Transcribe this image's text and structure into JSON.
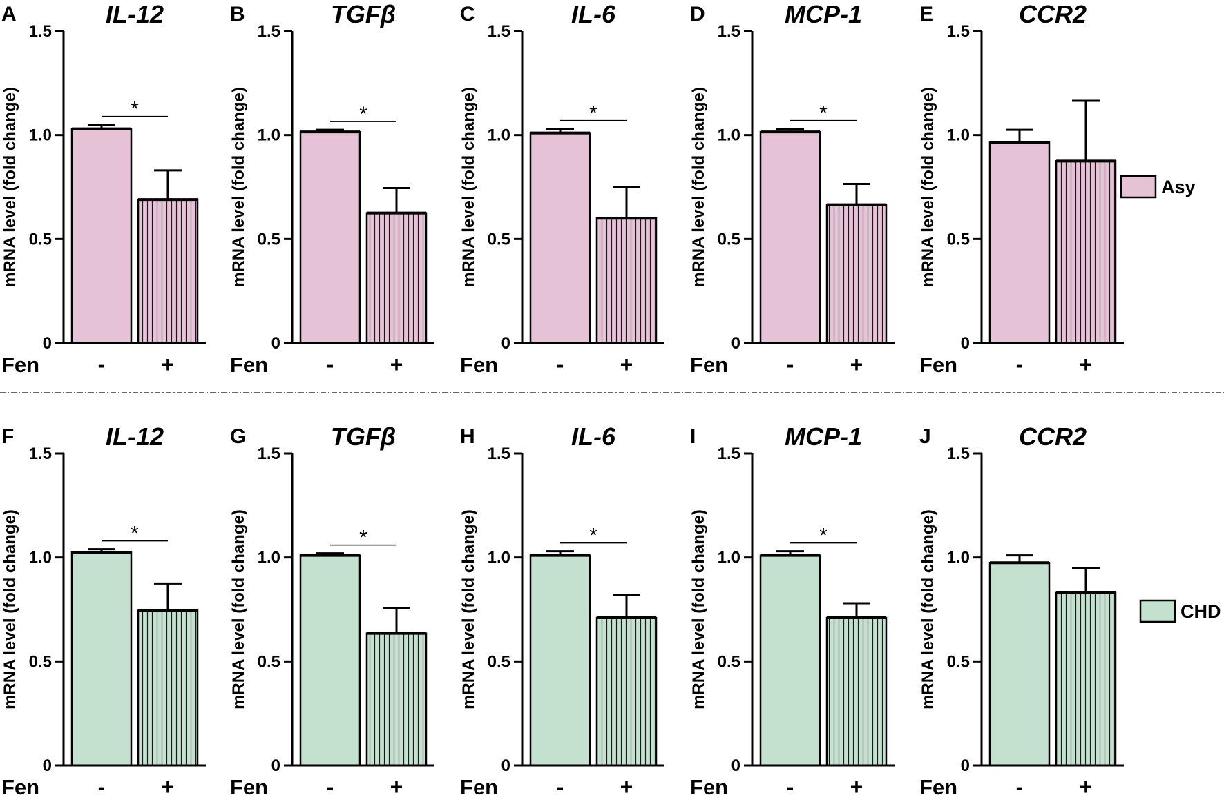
{
  "colors": {
    "asy": "#e6c2d6",
    "chd": "#c4e0ce",
    "axis": "#000000"
  },
  "legend": [
    {
      "label": "Asy",
      "color": "#e6c2d6"
    },
    {
      "label": "CHD",
      "color": "#c4e0ce"
    }
  ],
  "chart_data": [
    {
      "type": "bar",
      "panel": "A",
      "title": "IL-12",
      "group": "Asy",
      "xlabel": "Fen",
      "categories": [
        "-",
        "+"
      ],
      "values": [
        1.03,
        0.69
      ],
      "errors": [
        0.02,
        0.14
      ],
      "ylabel": "mRNA level (fold change)",
      "ylim": [
        0,
        1.5
      ],
      "yticks": [
        "0",
        "0.5",
        "1.0",
        "1.5"
      ],
      "significance": "*"
    },
    {
      "type": "bar",
      "panel": "B",
      "title": "TGFβ",
      "group": "Asy",
      "xlabel": "Fen",
      "categories": [
        "-",
        "+"
      ],
      "values": [
        1.015,
        0.625
      ],
      "errors": [
        0.01,
        0.12
      ],
      "ylabel": "mRNA level (fold change)",
      "ylim": [
        0,
        1.5
      ],
      "yticks": [
        "0",
        "0.5",
        "1.0",
        "1.5"
      ],
      "significance": "*"
    },
    {
      "type": "bar",
      "panel": "C",
      "title": "IL-6",
      "group": "Asy",
      "xlabel": "Fen",
      "categories": [
        "-",
        "+"
      ],
      "values": [
        1.01,
        0.6
      ],
      "errors": [
        0.02,
        0.15
      ],
      "ylabel": "mRNA level (fold change)",
      "ylim": [
        0,
        1.5
      ],
      "yticks": [
        "0",
        "0.5",
        "1.0",
        "1.5"
      ],
      "significance": "*"
    },
    {
      "type": "bar",
      "panel": "D",
      "title": "MCP-1",
      "group": "Asy",
      "xlabel": "Fen",
      "categories": [
        "-",
        "+"
      ],
      "values": [
        1.015,
        0.665
      ],
      "errors": [
        0.015,
        0.1
      ],
      "ylabel": "mRNA level (fold change)",
      "ylim": [
        0,
        1.5
      ],
      "yticks": [
        "0",
        "0.5",
        "1.0",
        "1.5"
      ],
      "significance": "*"
    },
    {
      "type": "bar",
      "panel": "E",
      "title": "CCR2",
      "group": "Asy",
      "xlabel": "Fen",
      "categories": [
        "-",
        "+"
      ],
      "values": [
        0.965,
        0.875
      ],
      "errors": [
        0.06,
        0.29
      ],
      "ylabel": "mRNA level (fold change)",
      "ylim": [
        0,
        1.5
      ],
      "yticks": [
        "0",
        "0.5",
        "1.0",
        "1.5"
      ],
      "significance": ""
    },
    {
      "type": "bar",
      "panel": "F",
      "title": "IL-12",
      "group": "CHD",
      "xlabel": "Fen",
      "categories": [
        "-",
        "+"
      ],
      "values": [
        1.025,
        0.745
      ],
      "errors": [
        0.015,
        0.13
      ],
      "ylabel": "mRNA level (fold change)",
      "ylim": [
        0,
        1.5
      ],
      "yticks": [
        "0",
        "0.5",
        "1.0",
        "1.5"
      ],
      "significance": "*"
    },
    {
      "type": "bar",
      "panel": "G",
      "title": "TGFβ",
      "group": "CHD",
      "xlabel": "Fen",
      "categories": [
        "-",
        "+"
      ],
      "values": [
        1.01,
        0.635
      ],
      "errors": [
        0.01,
        0.12
      ],
      "ylabel": "mRNA level (fold change)",
      "ylim": [
        0,
        1.5
      ],
      "yticks": [
        "0",
        "0.5",
        "1.0",
        "1.5"
      ],
      "significance": "*"
    },
    {
      "type": "bar",
      "panel": "H",
      "title": "IL-6",
      "group": "CHD",
      "xlabel": "Fen",
      "categories": [
        "-",
        "+"
      ],
      "values": [
        1.01,
        0.71
      ],
      "errors": [
        0.02,
        0.11
      ],
      "ylabel": "mRNA level (fold change)",
      "ylim": [
        0,
        1.5
      ],
      "yticks": [
        "0",
        "0.5",
        "1.0",
        "1.5"
      ],
      "significance": "*"
    },
    {
      "type": "bar",
      "panel": "I",
      "title": "MCP-1",
      "group": "CHD",
      "xlabel": "Fen",
      "categories": [
        "-",
        "+"
      ],
      "values": [
        1.01,
        0.71
      ],
      "errors": [
        0.02,
        0.07
      ],
      "ylabel": "mRNA level (fold change)",
      "ylim": [
        0,
        1.5
      ],
      "yticks": [
        "0",
        "0.5",
        "1.0",
        "1.5"
      ],
      "significance": "*"
    },
    {
      "type": "bar",
      "panel": "J",
      "title": "CCR2",
      "group": "CHD",
      "xlabel": "Fen",
      "categories": [
        "-",
        "+"
      ],
      "values": [
        0.975,
        0.83
      ],
      "errors": [
        0.035,
        0.12
      ],
      "ylabel": "mRNA level (fold change)",
      "ylim": [
        0,
        1.5
      ],
      "yticks": [
        "0",
        "0.5",
        "1.0",
        "1.5"
      ],
      "significance": ""
    }
  ]
}
